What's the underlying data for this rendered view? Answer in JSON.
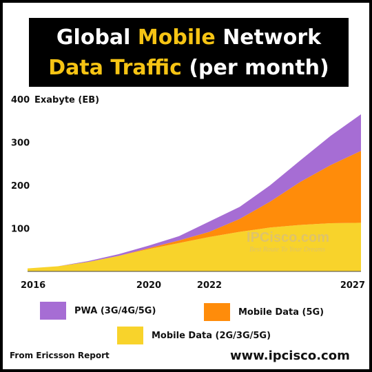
{
  "title": {
    "line1_a": "Global ",
    "line1_highlight": "Mobile",
    "line1_b": " Network",
    "line2_highlight": "Data Traffic",
    "line2_b": " (per month)"
  },
  "y_unit_label": "Exabyte (EB)",
  "source_text": "From Ericsson Report",
  "website": "www.ipcisco.com",
  "watermark": {
    "name": "IPCisco.com",
    "tagline": "Best Route To Your Dreams"
  },
  "colors": {
    "pwa": "#a66dd4",
    "mobile_5g": "#ff8c0a",
    "mobile_2g_3g_5g": "#f8d32b",
    "title_highlight": "#f6c414"
  },
  "chart_data": {
    "type": "area",
    "stacked": true,
    "x": [
      2016,
      2017,
      2018,
      2019,
      2020,
      2021,
      2022,
      2023,
      2024,
      2025,
      2026,
      2027
    ],
    "x_tick_labels": [
      "2016",
      "2020",
      "2022",
      "2027"
    ],
    "y_ticks": [
      100,
      200,
      300,
      400
    ],
    "ylim": [
      0,
      400
    ],
    "ylabel": "Exabyte (EB)",
    "grid": false,
    "series": [
      {
        "name": "Mobile Data (2G/3G/5G)",
        "values": [
          7,
          12,
          22,
          36,
          52,
          66,
          80,
          92,
          102,
          108,
          112,
          113
        ]
      },
      {
        "name": "Mobile Data (5G)",
        "values": [
          0,
          0,
          0,
          0,
          2,
          6,
          12,
          30,
          60,
          100,
          135,
          167
        ]
      },
      {
        "name": "PWA (3G/4G/5G)",
        "values": [
          0,
          0,
          2,
          4,
          6,
          10,
          24,
          28,
          38,
          50,
          68,
          85
        ]
      }
    ],
    "legend": [
      {
        "label": "PWA (3G/4G/5G)",
        "color": "#a66dd4"
      },
      {
        "label": "Mobile Data (5G)",
        "color": "#ff8c0a"
      },
      {
        "label": "Mobile Data (2G/3G/5G)",
        "color": "#f8d32b"
      }
    ]
  }
}
